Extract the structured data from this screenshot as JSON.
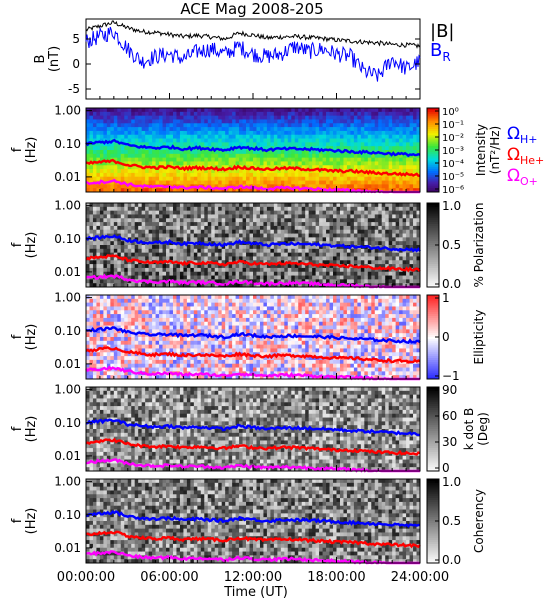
{
  "chart_data": [
    {
      "type": "line",
      "title": "ACE Mag 2008-205",
      "ylabel": "B",
      "yunit": "(nT)",
      "ylim": [
        -7,
        9
      ],
      "yticks": [
        5,
        0,
        -5
      ],
      "series": [
        {
          "name": "|B|",
          "color": "#000000",
          "x": [
            0,
            1,
            2,
            3,
            4,
            5,
            6,
            7,
            8,
            9,
            10,
            11,
            12,
            13,
            14,
            15,
            16,
            17,
            18,
            19,
            20,
            21,
            22,
            23,
            24
          ],
          "values": [
            6.8,
            7.6,
            8.3,
            7.2,
            6.5,
            6.3,
            5.9,
            5.5,
            5.7,
            5.4,
            5.0,
            6.2,
            5.8,
            5.2,
            5.4,
            5.5,
            5.3,
            5.1,
            4.8,
            4.6,
            4.4,
            4.2,
            3.9,
            3.8,
            3.6
          ]
        },
        {
          "name": "B_R",
          "color": "#0000ff",
          "x": [
            0,
            1,
            2,
            3,
            4,
            5,
            6,
            7,
            8,
            9,
            10,
            11,
            12,
            13,
            14,
            15,
            16,
            17,
            18,
            19,
            20,
            21,
            22,
            23,
            24
          ],
          "values": [
            4.5,
            5.5,
            6.5,
            3.0,
            0.5,
            1.5,
            2.0,
            1.0,
            2.5,
            3.0,
            2.0,
            3.5,
            2.0,
            1.5,
            2.0,
            3.5,
            2.5,
            3.0,
            2.0,
            1.5,
            -1.5,
            -2.5,
            1.0,
            -1.0,
            0.5
          ]
        }
      ],
      "legend": [
        "|B|",
        "B"
      ],
      "legend_subscript": "R"
    },
    {
      "type": "heatmap",
      "ylabel": "f",
      "yunit": "(Hz)",
      "yticks": [
        "1.00",
        "0.10",
        "0.01"
      ],
      "colorbar": {
        "label": "Intensity",
        "unit": "(nT²/Hz)",
        "ticks": [
          "10⁰",
          "10⁻¹",
          "10⁻²",
          "10⁻³",
          "10⁻⁴",
          "10⁻⁵",
          "10⁻⁶"
        ],
        "scale": "rainbow"
      },
      "legend": [
        "Ω",
        "Ω",
        "Ω"
      ],
      "legend_subscripts": [
        "H+",
        "He+",
        "O+"
      ]
    },
    {
      "type": "heatmap",
      "ylabel": "f",
      "yunit": "(Hz)",
      "yticks": [
        "1.00",
        "0.10",
        "0.01"
      ],
      "colorbar": {
        "label": "% Polarization",
        "ticks": [
          "1.0",
          "0.5",
          "0.0"
        ],
        "scale": "gray"
      }
    },
    {
      "type": "heatmap",
      "ylabel": "f",
      "yunit": "(Hz)",
      "yticks": [
        "1.00",
        "0.10",
        "0.01"
      ],
      "colorbar": {
        "label": "Ellipticity",
        "ticks": [
          "1",
          "0",
          "−1"
        ],
        "scale": "bwr"
      }
    },
    {
      "type": "heatmap",
      "ylabel": "f",
      "yunit": "(Hz)",
      "yticks": [
        "1.00",
        "0.10",
        "0.01"
      ],
      "colorbar": {
        "label": "k dot B",
        "unit": "(Deg)",
        "ticks": [
          "90",
          "60",
          "30",
          "0"
        ],
        "scale": "gray"
      }
    },
    {
      "type": "heatmap",
      "ylabel": "f",
      "yunit": "(Hz)",
      "yticks": [
        "1.00",
        "0.10",
        "0.01"
      ],
      "colorbar": {
        "label": "Coherency",
        "ticks": [
          "1.0",
          "0.5",
          "0.0"
        ],
        "scale": "gray"
      },
      "xlabel": "Time (UT)",
      "xticks": [
        "00:00:00",
        "06:00:00",
        "12:00:00",
        "18:00:00",
        "24:00:00"
      ]
    }
  ],
  "gyrofrequency_lines": [
    {
      "ion": "H+",
      "color": "#0000ff",
      "hz": [
        0.1,
        0.11,
        0.12,
        0.09,
        0.08,
        0.075,
        0.08,
        0.07,
        0.075,
        0.07,
        0.065,
        0.08,
        0.072,
        0.065,
        0.07,
        0.07,
        0.068,
        0.065,
        0.062,
        0.058,
        0.056,
        0.053,
        0.05,
        0.048,
        0.046
      ]
    },
    {
      "ion": "He+",
      "color": "#ff0000",
      "hz": [
        0.025,
        0.028,
        0.03,
        0.023,
        0.02,
        0.019,
        0.02,
        0.018,
        0.019,
        0.018,
        0.017,
        0.02,
        0.018,
        0.017,
        0.018,
        0.018,
        0.017,
        0.016,
        0.015,
        0.015,
        0.014,
        0.013,
        0.0125,
        0.012,
        0.0115
      ]
    },
    {
      "ion": "O+",
      "color": "#ff00ff",
      "hz": [
        0.0065,
        0.007,
        0.0075,
        0.006,
        0.0052,
        0.005,
        0.0052,
        0.0047,
        0.0049,
        0.0047,
        0.0044,
        0.0051,
        0.0047,
        0.0044,
        0.0046,
        0.0046,
        0.0044,
        0.0042,
        0.004,
        0.0039,
        0.0037,
        0.0035,
        0.0033,
        0.0032,
        0.003
      ]
    }
  ]
}
